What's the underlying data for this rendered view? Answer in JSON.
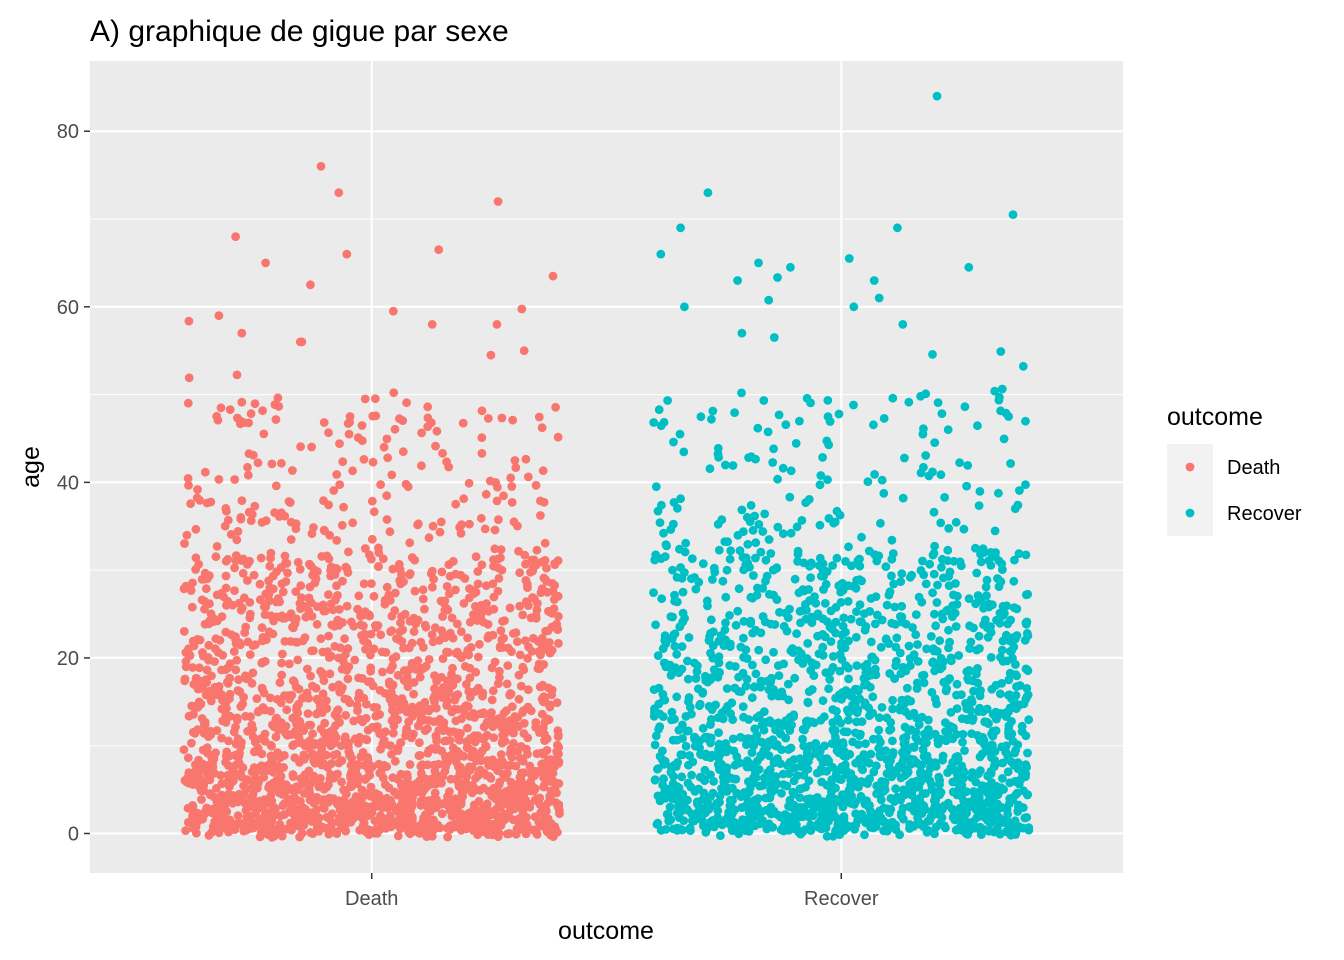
{
  "chart_data": {
    "type": "scatter",
    "title": "A) graphique de gigue par sexe",
    "xlabel": "outcome",
    "ylabel": "age",
    "categories": [
      "Death",
      "Recover"
    ],
    "ylim": [
      -4.5,
      88
    ],
    "yticks": [
      0,
      20,
      40,
      60,
      80
    ],
    "grid": true,
    "jitter_width": 0.4,
    "legend": {
      "title": "outcome",
      "placement": "right",
      "entries": [
        "Death",
        "Recover"
      ]
    },
    "series": [
      {
        "name": "Death",
        "category": "Death",
        "color": "#F8766D",
        "count": 2300,
        "max_age": 76,
        "highlights": [
          76.0,
          73.0,
          72.0,
          68.0,
          66.5,
          66.0,
          65.0,
          63.5,
          62.5,
          59.5,
          59.0,
          58.0,
          58.0,
          57.0,
          56.0,
          56.0,
          55.0,
          54.5
        ]
      },
      {
        "name": "Recover",
        "category": "Recover",
        "color": "#00BFC4",
        "count": 1900,
        "max_age": 84,
        "highlights": [
          84.0,
          73.0,
          70.5,
          69.0,
          69.0,
          66.0,
          65.5,
          65.0,
          64.5,
          64.5,
          63.0,
          63.0,
          61.0,
          60.0,
          60.0,
          58.0,
          57.0,
          56.5
        ]
      }
    ]
  }
}
